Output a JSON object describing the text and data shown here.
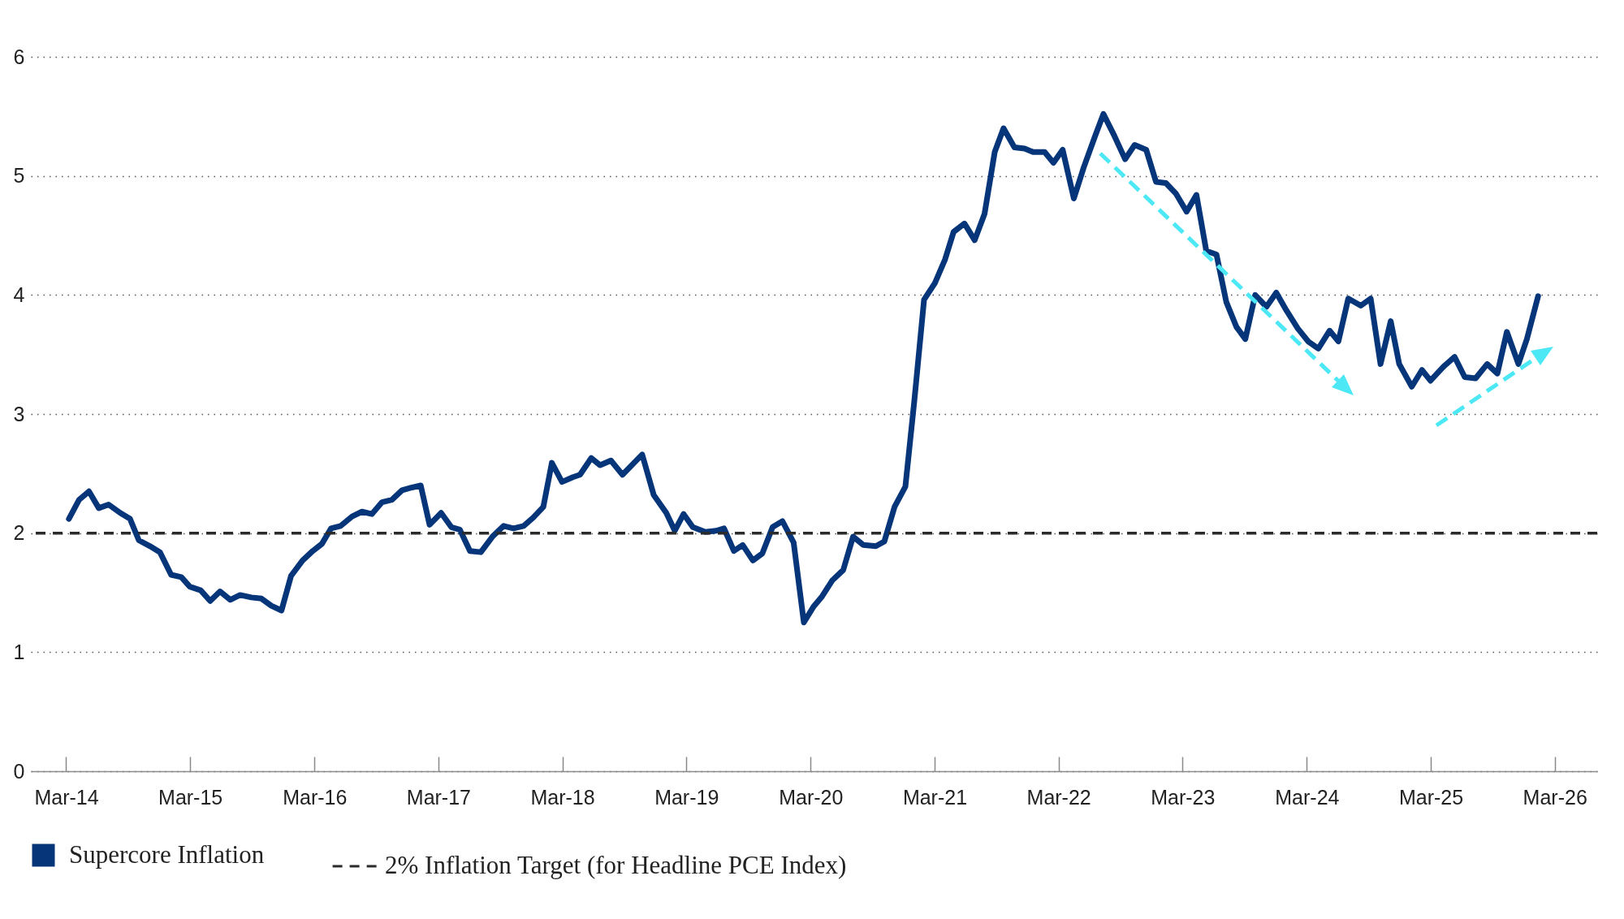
{
  "chart_data": {
    "type": "line",
    "x": [
      "2014-03-09",
      "2014-04-08",
      "2014-05-07",
      "2014-06-05",
      "2014-07-04",
      "2014-08-07",
      "2014-09-05",
      "2014-10-01",
      "2014-11-03",
      "2014-12-02",
      "2015-01-04",
      "2015-02-03",
      "2015-02-28",
      "2015-04-01",
      "2015-04-29",
      "2015-05-28",
      "2015-06-27",
      "2015-07-26",
      "2015-08-28",
      "2015-09-27",
      "2015-10-26",
      "2015-11-25",
      "2015-12-23",
      "2016-01-26",
      "2016-02-25",
      "2016-03-23",
      "2016-04-19",
      "2016-05-17",
      "2016-06-20",
      "2016-07-19",
      "2016-08-17",
      "2016-09-16",
      "2016-10-15",
      "2016-11-14",
      "2016-12-09",
      "2017-01-08",
      "2017-02-03",
      "2017-03-09",
      "2017-04-08",
      "2017-05-03",
      "2017-06-02",
      "2017-07-04",
      "2017-08-07",
      "2017-09-09",
      "2017-10-08",
      "2017-11-07",
      "2017-12-05",
      "2018-01-04",
      "2018-01-29",
      "2018-02-28",
      "2018-04-01",
      "2018-04-22",
      "2018-05-25",
      "2018-06-20",
      "2018-07-22",
      "2018-08-25",
      "2018-10-22",
      "2018-11-25",
      "2019-01-01",
      "2019-01-26",
      "2019-02-21",
      "2019-03-20",
      "2019-04-26",
      "2019-05-28",
      "2019-06-20",
      "2019-07-19",
      "2019-08-14",
      "2019-09-13",
      "2019-10-11",
      "2019-11-10",
      "2019-12-09",
      "2020-01-11",
      "2020-02-10",
      "2020-03-09",
      "2020-04-04",
      "2020-05-03",
      "2020-06-05",
      "2020-07-04",
      "2020-08-03",
      "2020-09-09",
      "2020-10-04",
      "2020-11-03",
      "2020-12-05",
      "2021-01-01",
      "2021-01-29",
      "2021-03-02",
      "2021-04-01",
      "2021-04-26",
      "2021-05-28",
      "2021-06-27",
      "2021-07-26",
      "2021-08-25",
      "2021-09-20",
      "2021-10-22",
      "2021-11-21",
      "2021-12-16",
      "2022-01-19",
      "2022-02-14",
      "2022-03-13",
      "2022-04-15",
      "2022-05-14",
      "2022-06-16",
      "2022-07-11",
      "2022-08-10",
      "2022-09-13",
      "2022-10-11",
      "2022-11-14",
      "2022-12-13",
      "2023-01-11",
      "2023-02-10",
      "2023-03-13",
      "2023-04-11",
      "2023-05-10",
      "2023-06-09",
      "2023-07-08",
      "2023-08-07",
      "2023-09-02",
      "2023-10-01",
      "2023-11-03",
      "2023-12-02",
      "2024-01-01",
      "2024-02-03",
      "2024-03-05",
      "2024-04-04",
      "2024-05-07",
      "2024-06-02",
      "2024-07-01",
      "2024-08-07",
      "2024-09-05",
      "2024-10-04",
      "2024-11-03",
      "2024-11-28",
      "2025-01-04",
      "2025-02-03",
      "2025-02-28",
      "2025-04-08",
      "2025-05-10",
      "2025-06-09",
      "2025-07-11",
      "2025-08-14",
      "2025-09-13",
      "2025-10-11",
      "2025-11-14",
      "2025-12-09",
      "2026-01-11"
    ],
    "series": [
      {
        "name": "Supercore Inflation",
        "color": "#06357a",
        "values": [
          2.12,
          2.28,
          2.35,
          2.21,
          2.24,
          2.17,
          2.12,
          1.94,
          1.89,
          1.84,
          1.65,
          1.63,
          1.55,
          1.52,
          1.43,
          1.51,
          1.44,
          1.48,
          1.46,
          1.45,
          1.39,
          1.35,
          1.64,
          1.77,
          1.85,
          1.91,
          2.04,
          2.06,
          2.14,
          2.18,
          2.16,
          2.26,
          2.28,
          2.36,
          2.38,
          2.4,
          2.07,
          2.17,
          2.05,
          2.03,
          1.85,
          1.84,
          1.97,
          2.06,
          2.04,
          2.06,
          2.13,
          2.22,
          2.59,
          2.43,
          2.47,
          2.49,
          2.63,
          2.57,
          2.61,
          2.49,
          2.66,
          2.32,
          2.17,
          2.02,
          2.16,
          2.05,
          2.01,
          2.02,
          2.04,
          1.85,
          1.9,
          1.77,
          1.83,
          2.05,
          2.1,
          1.92,
          1.25,
          1.38,
          1.47,
          1.6,
          1.69,
          1.97,
          1.9,
          1.89,
          1.93,
          2.22,
          2.39,
          3.13,
          3.96,
          4.1,
          4.3,
          4.53,
          4.6,
          4.46,
          4.68,
          5.2,
          5.4,
          5.24,
          5.23,
          5.2,
          5.2,
          5.11,
          5.22,
          4.81,
          5.07,
          5.33,
          5.52,
          5.35,
          5.14,
          5.26,
          5.22,
          4.95,
          4.94,
          4.85,
          4.7,
          4.84,
          4.37,
          4.34,
          3.94,
          3.73,
          3.63,
          4.0,
          3.9,
          4.02,
          3.87,
          3.72,
          3.61,
          3.55,
          3.7,
          3.61,
          3.97,
          3.91,
          3.97,
          3.42,
          3.78,
          3.42,
          3.23,
          3.37,
          3.28,
          3.4,
          3.48,
          3.31,
          3.3,
          3.42,
          3.34,
          3.69,
          3.42,
          3.63,
          3.99
        ]
      }
    ],
    "xlim": [
      "2013-11-17",
      "2026-07-04"
    ],
    "xticks": [
      {
        "value": "2014-03-01",
        "label": "Mar-14"
      },
      {
        "value": "2015-03-01",
        "label": "Mar-15"
      },
      {
        "value": "2016-03-01",
        "label": "Mar-16"
      },
      {
        "value": "2017-03-01",
        "label": "Mar-17"
      },
      {
        "value": "2018-03-01",
        "label": "Mar-18"
      },
      {
        "value": "2019-03-01",
        "label": "Mar-19"
      },
      {
        "value": "2020-03-01",
        "label": "Mar-20"
      },
      {
        "value": "2021-03-01",
        "label": "Mar-21"
      },
      {
        "value": "2022-03-01",
        "label": "Mar-22"
      },
      {
        "value": "2023-03-01",
        "label": "Mar-23"
      },
      {
        "value": "2024-03-01",
        "label": "Mar-24"
      },
      {
        "value": "2025-03-01",
        "label": "Mar-25"
      },
      {
        "value": "2026-03-01",
        "label": "Mar-26"
      }
    ],
    "ylim": [
      0,
      6
    ],
    "yticks": [
      0,
      1,
      2,
      3,
      4,
      5,
      6
    ],
    "ref_lines": [
      {
        "axis": "y",
        "value": 2,
        "label": "2% Inflation Target (for Headline PCE Index)",
        "color": "#2b2b2b",
        "line_style": "dashed"
      }
    ],
    "grid": "y",
    "legend": "bottom left",
    "line_style": "solid",
    "marker": "none"
  }
}
